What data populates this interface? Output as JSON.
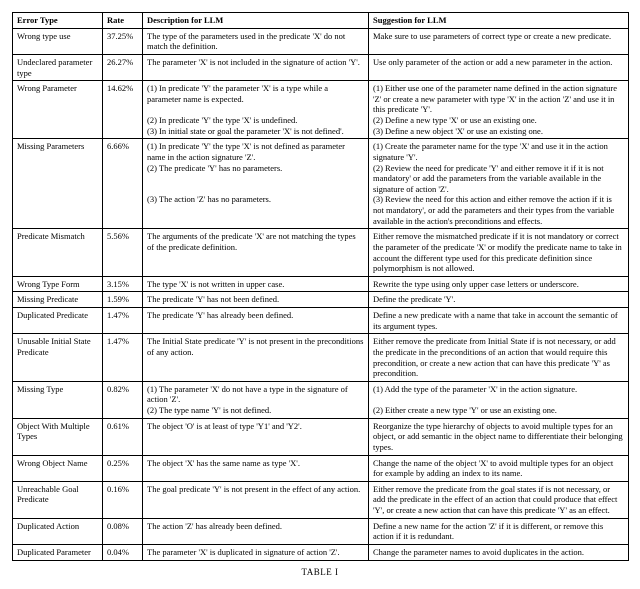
{
  "caption": "TABLE I",
  "columns": [
    "Error Type",
    "Rate",
    "Description for LLM",
    "Suggestion for LLM"
  ],
  "rows": [
    {
      "type": "Wrong type use",
      "rate": "37.25%",
      "desc": "The type of the parameters used in the predicate 'X' do not match the definition.",
      "sugg": "Make sure to use parameters of correct type or create a new predicate."
    },
    {
      "type": "Undeclared parameter type",
      "rate": "26.27%",
      "desc": "The parameter 'X' is not included in the signature of action 'Y'.",
      "sugg": "Use only parameter of the action or add a new parameter in the action."
    },
    {
      "type": "Wrong Parameter",
      "rate": "14.62%",
      "desc": "(1) In predicate 'Y' the parameter 'X' is a type while a parameter name is expected.\n\n(2) In predicate 'Y' the type 'X' is undefined.\n(3) In initial state or goal the parameter 'X' is not defined'.",
      "sugg": "(1) Either use one of the parameter name defined in the action signature 'Z' or create a new parameter with type 'X' in the action 'Z' and use it in this predicate 'Y'.\n(2) Define a new type 'X' or use an existing one.\n(3) Define a new object 'X' or use an existing one."
    },
    {
      "type": "Missing Parameters",
      "rate": "6.66%",
      "desc": "(1) In predicate 'Y' the type 'X' is not defined as parameter name in the action signature 'Z'.\n(2) The predicate 'Y' has no parameters.\n\n\n(3) The action 'Z' has no parameters.",
      "sugg": "(1) Create the parameter name for the type 'X' and use it in the action signature 'Y'.\n(2) Review the need for predicate 'Y' and either remove it if it is not mandatory' or add the parameters from the variable available in the signature of action 'Z'.\n(3) Review the need for this action and either remove the action if it is not mandatory', or add the parameters and their types from the variable available in the action's preconditions and effects."
    },
    {
      "type": "Predicate Mismatch",
      "rate": "5.56%",
      "desc": "The arguments of the predicate 'X' are not matching the types of the predicate definition.",
      "sugg": "Either remove the mismatched predicate if it is not mandatory or correct the parameter of the predicate 'X' or modify the predicate name to take in account the different type used for this predicate definition since polymorphism is not allowed."
    },
    {
      "type": "Wrong Type Form",
      "rate": "3.15%",
      "desc": "The type 'X' is not written in upper case.",
      "sugg": "Rewrite the type using only upper case letters or underscore."
    },
    {
      "type": "Missing Predicate",
      "rate": "1.59%",
      "desc": "The predicate 'Y' has not been defined.",
      "sugg": "Define the predicate 'Y'."
    },
    {
      "type": "Duplicated Predicate",
      "rate": "1.47%",
      "desc": "The predicate 'Y' has already been defined.",
      "sugg": "Define a new predicate with a name that take in account the semantic of its argument types."
    },
    {
      "type": "Unusable Initial State Predicate",
      "rate": "1.47%",
      "desc": "The Initial State predicate 'Y' is not present in the preconditions of any action.",
      "sugg": "Either remove the predicate from Initial State if is not necessary, or add the predicate in the preconditions of an action that would require this precondition, or create a new action that can have this predicate 'Y' as precondition."
    },
    {
      "type": "Missing Type",
      "rate": "0.82%",
      "desc": "(1) The parameter 'X' do not have a type in the signature of action 'Z'.\n(2) The type name 'Y' is not defined.",
      "sugg": "(1) Add the type of the parameter 'X' in the action signature.\n\n(2) Either create a new type 'Y' or use an existing one."
    },
    {
      "type": "Object With Multiple Types",
      "rate": "0.61%",
      "desc": "The object 'O' is at least of type 'Y1' and 'Y2'.",
      "sugg": "Reorganize the type hierarchy of objects to avoid multiple types for an object, or add semantic in the object name to differentiate their belonging types."
    },
    {
      "type": "Wrong Object Name",
      "rate": "0.25%",
      "desc": "The object 'X' has the same name as type 'X'.",
      "sugg": "Change the name of the object 'X' to avoid multiple types for an object for example by adding an index to its name."
    },
    {
      "type": "Unreachable Goal Predicate",
      "rate": "0.16%",
      "desc": "The goal predicate 'Y' is not present in the effect of any action.",
      "sugg": "Either remove the predicate from the goal states if is not necessary, or add the predicate in the effect of an action that could produce that effect 'Y', or create a new action that can have this predicate 'Y' as an effect."
    },
    {
      "type": "Duplicated Action",
      "rate": "0.08%",
      "desc": "The action 'Z' has already been defined.",
      "sugg": "Define a new name for the action 'Z' if it is different, or remove this action if it is redundant."
    },
    {
      "type": "Duplicated Parameter",
      "rate": "0.04%",
      "desc": "The parameter 'X' is duplicated in signature of action 'Z'.",
      "sugg": "Change the parameter names to avoid duplicates in the action."
    }
  ]
}
